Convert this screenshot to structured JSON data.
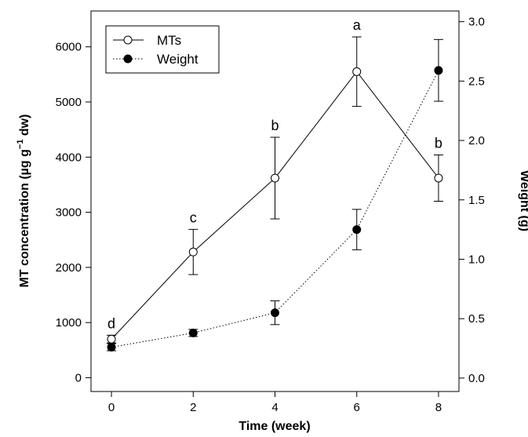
{
  "chart_data": {
    "type": "line",
    "xlabel": "Time (week)",
    "ylabel_left_main": "MT concentration (µg g",
    "ylabel_left_sup": "−1",
    "ylabel_left_tail": " dw)",
    "ylabel_right": "Weight (g)",
    "x_ticks": [
      "0",
      "2",
      "4",
      "6",
      "8"
    ],
    "y_left_ticks": [
      "0",
      "1000",
      "2000",
      "3000",
      "4000",
      "5000",
      "6000"
    ],
    "y_right_ticks": [
      "0.0",
      "0.5",
      "1.0",
      "1.5",
      "2.0",
      "2.5",
      "3.0"
    ],
    "xlim": [
      -0.5,
      8.5
    ],
    "ylim_left": [
      -250,
      6650
    ],
    "ylim_right": [
      -0.113,
      3.09
    ],
    "legend_position": "top-left",
    "series": [
      {
        "name": "MTs",
        "axis": "left",
        "line_style": "solid",
        "marker": "open-circle",
        "x": [
          0,
          2,
          4,
          6,
          8
        ],
        "y": [
          700,
          2280,
          3620,
          5550,
          3620
        ],
        "err": [
          70,
          410,
          740,
          630,
          420
        ],
        "significance": [
          "d",
          "c",
          "b",
          "a",
          "b"
        ]
      },
      {
        "name": "Weight",
        "axis": "right",
        "line_style": "dotted",
        "marker": "filled-circle",
        "x": [
          0,
          2,
          4,
          6,
          8
        ],
        "y": [
          0.26,
          0.38,
          0.55,
          1.25,
          2.59
        ],
        "err": [
          0.03,
          0.03,
          0.1,
          0.17,
          0.26
        ]
      }
    ]
  }
}
